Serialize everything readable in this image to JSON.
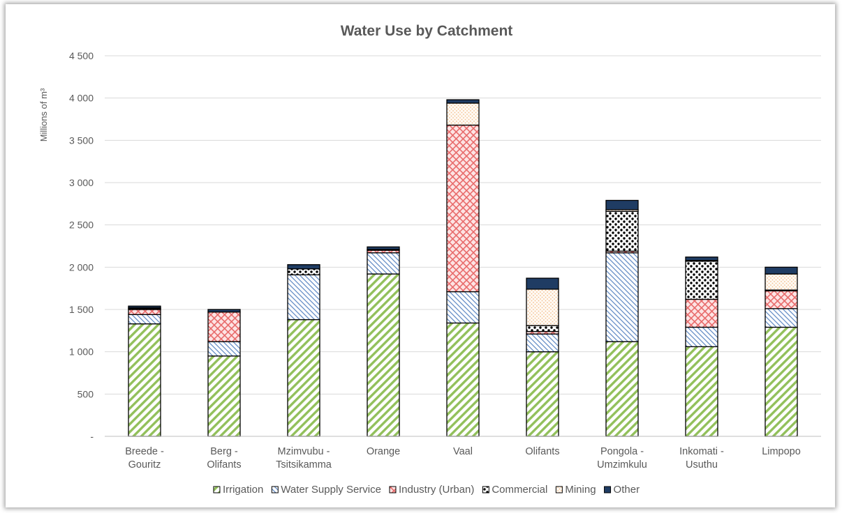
{
  "chart_data": {
    "type": "bar",
    "stacked": true,
    "title": "Water Use by Catchment",
    "ylabel": "Millions of m³",
    "xlabel": "",
    "ylim": [
      0,
      4500
    ],
    "y_ticks": [
      {
        "value": 0,
        "label": "-"
      },
      {
        "value": 500,
        "label": "500"
      },
      {
        "value": 1000,
        "label": "1 000"
      },
      {
        "value": 1500,
        "label": "1 500"
      },
      {
        "value": 2000,
        "label": "2 000"
      },
      {
        "value": 2500,
        "label": "2 500"
      },
      {
        "value": 3000,
        "label": "3 000"
      },
      {
        "value": 3500,
        "label": "3 500"
      },
      {
        "value": 4000,
        "label": "4 000"
      },
      {
        "value": 4500,
        "label": "4 500"
      }
    ],
    "categories": [
      [
        "Breede -",
        "Gouritz"
      ],
      [
        "Berg -",
        "Olifants"
      ],
      [
        "Mzimvubu -",
        "Tsitsikamma"
      ],
      [
        "Orange"
      ],
      [
        "Vaal"
      ],
      [
        "Olifants"
      ],
      [
        "Pongola -",
        "Umzimkulu"
      ],
      [
        "Inkomati -",
        "Usuthu"
      ],
      [
        "Limpopo"
      ]
    ],
    "series": [
      {
        "name": "Irrigation",
        "pattern": "irrigation",
        "values": [
          1330,
          950,
          1380,
          1920,
          1340,
          1000,
          1120,
          1060,
          1290
        ]
      },
      {
        "name": "Water Supply Service",
        "pattern": "water",
        "values": [
          110,
          170,
          530,
          250,
          370,
          210,
          1050,
          230,
          220
        ]
      },
      {
        "name": "Industry (Urban)",
        "pattern": "industry",
        "values": [
          60,
          350,
          0,
          30,
          1970,
          30,
          20,
          330,
          210
        ]
      },
      {
        "name": "Commercial",
        "pattern": "commercial",
        "values": [
          10,
          0,
          70,
          10,
          0,
          70,
          470,
          450,
          10
        ]
      },
      {
        "name": "Mining",
        "pattern": "mining",
        "values": [
          10,
          0,
          0,
          0,
          260,
          430,
          20,
          10,
          190
        ]
      },
      {
        "name": "Other",
        "pattern": "other",
        "values": [
          20,
          30,
          50,
          30,
          40,
          130,
          110,
          40,
          80
        ]
      }
    ],
    "grid": true,
    "legend_position": "bottom"
  },
  "colors": {
    "irrigation": "#92c05b",
    "water": "#5b86c2",
    "industry": "#e86a6a",
    "commercial": "#000000",
    "mining": "#f3bf8f",
    "other": "#1f3c63"
  }
}
